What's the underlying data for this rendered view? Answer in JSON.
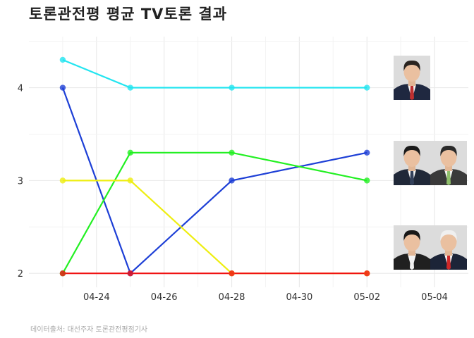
{
  "title": "토론관전평 평균 TV토론 결과",
  "caption": "데이터출처: 대선주자 토론관전평점기사",
  "chart_data": {
    "type": "line",
    "title": "토론관전평 평균 TV토론 결과",
    "xlabel": "",
    "ylabel": "",
    "x_type": "date",
    "x": [
      "2017-04-23",
      "2017-04-25",
      "2017-04-28",
      "2017-05-02"
    ],
    "xlim": [
      "2017-04-22",
      "2017-05-05"
    ],
    "ylim": [
      1.85,
      4.55
    ],
    "x_ticks": [
      "04-24",
      "04-26",
      "04-28",
      "04-30",
      "05-02",
      "05-04"
    ],
    "y_ticks": [
      2,
      3,
      4
    ],
    "grid": true,
    "legend": "none",
    "series": [
      {
        "color": "#22e5f0",
        "values": [
          4.3,
          4.0,
          4.0,
          4.0
        ]
      },
      {
        "color": "#1d3fd6",
        "values": [
          4.0,
          2.0,
          3.0,
          3.3
        ]
      },
      {
        "color": "#22f022",
        "values": [
          2.0,
          3.3,
          3.3,
          3.0
        ]
      },
      {
        "color": "#eeee11",
        "values": [
          3.0,
          3.0,
          2.0,
          2.0
        ]
      },
      {
        "color": "#f01111",
        "values": [
          2.0,
          2.0,
          2.0,
          2.0
        ]
      }
    ]
  },
  "portraits": [
    {
      "icon": "portrait-photo",
      "suit": "#1f2840",
      "tie": "#c03030",
      "hair": "#2a2420"
    },
    {
      "icon": "portrait-photo",
      "suit": "#202838",
      "tie": "#33405a",
      "hair": "#1a1a1a"
    },
    {
      "icon": "portrait-photo",
      "suit": "#3a3a3a",
      "tie": "#8fbf6a",
      "hair": "#2a2a2a"
    },
    {
      "icon": "portrait-photo",
      "suit": "#202020",
      "tie": "#f2f2f2",
      "hair": "#181818"
    },
    {
      "icon": "portrait-photo",
      "suit": "#1c2438",
      "tie": "#d02828",
      "hair": "#f0f0f0"
    }
  ]
}
